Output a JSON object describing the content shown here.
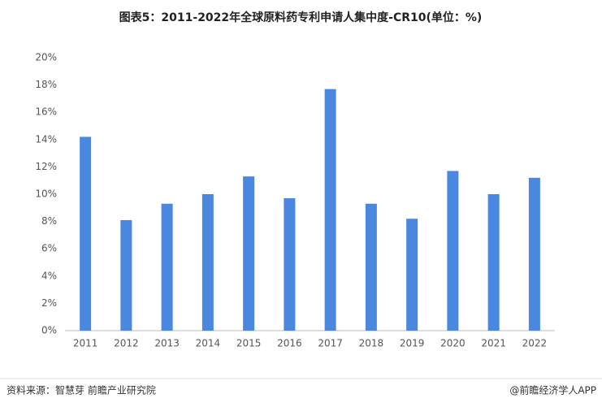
{
  "chart_data": {
    "type": "bar",
    "title": "图表5：2011-2022年全球原料药专利申请人集中度-CR10(单位：%)",
    "categories": [
      "2011",
      "2012",
      "2013",
      "2014",
      "2015",
      "2016",
      "2017",
      "2018",
      "2019",
      "2020",
      "2021",
      "2022"
    ],
    "values": [
      14.2,
      8.1,
      9.3,
      10.0,
      11.3,
      9.7,
      17.7,
      9.3,
      8.2,
      11.7,
      10.0,
      11.2
    ],
    "color": "#4a88e0",
    "ylim": [
      0,
      20
    ],
    "yticks": [
      {
        "value": 0,
        "label": "0%"
      },
      {
        "value": 2,
        "label": "2%"
      },
      {
        "value": 4,
        "label": "4%"
      },
      {
        "value": 6,
        "label": "6%"
      },
      {
        "value": 8,
        "label": "8%"
      },
      {
        "value": 10,
        "label": "10%"
      },
      {
        "value": 12,
        "label": "12%"
      },
      {
        "value": 14,
        "label": "14%"
      },
      {
        "value": 16,
        "label": "16%"
      },
      {
        "value": 18,
        "label": "18%"
      },
      {
        "value": 20,
        "label": "20%"
      }
    ],
    "grid": false,
    "source": "资料来源：智慧芽 前瞻产业研究院",
    "credit": "@前瞻经济学人APP"
  }
}
